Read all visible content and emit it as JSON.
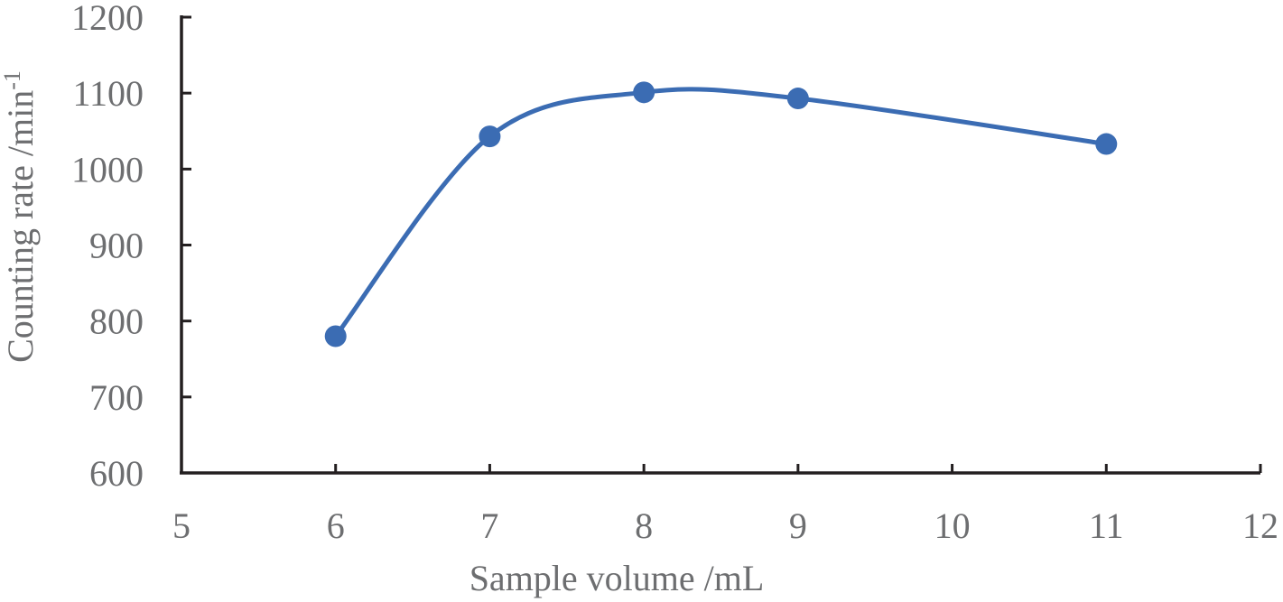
{
  "chart_data": {
    "type": "line",
    "smooth": true,
    "xlabel": "Sample volume /mL",
    "ylabel": "Counting rate /min",
    "ylabel_superscript": "-1",
    "xlim": [
      5,
      12
    ],
    "ylim": [
      600,
      1200
    ],
    "xticks": [
      5,
      6,
      7,
      8,
      9,
      10,
      11,
      12
    ],
    "yticks": [
      600,
      700,
      800,
      900,
      1000,
      1100,
      1200
    ],
    "grid": false,
    "legend": "none",
    "series": [
      {
        "color": "#3b6cb3",
        "marker": "circle",
        "points": [
          {
            "x": 6,
            "y": 780
          },
          {
            "x": 7,
            "y": 1043
          },
          {
            "x": 8,
            "y": 1101
          },
          {
            "x": 9,
            "y": 1093
          },
          {
            "x": 11,
            "y": 1033
          }
        ]
      }
    ]
  }
}
